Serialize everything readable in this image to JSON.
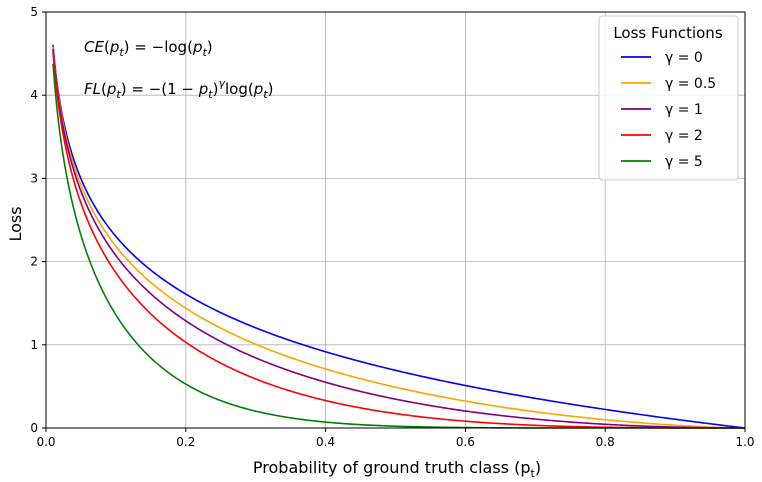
{
  "chart_data": {
    "type": "line",
    "title": "",
    "xlabel": "Probability of ground truth class",
    "xlabel_symbol": "(p",
    "xlabel_sub": "t",
    "xlabel_close": ")",
    "ylabel": "Loss",
    "xlim": [
      0.0,
      1.0
    ],
    "ylim": [
      0,
      5
    ],
    "x_ticks": [
      "0.0",
      "0.2",
      "0.4",
      "0.6",
      "0.8",
      "1.0"
    ],
    "y_ticks": [
      "0",
      "1",
      "2",
      "3",
      "4",
      "5"
    ],
    "grid": true,
    "x_start": 0.01,
    "annotations": {
      "ce": {
        "lhs": "CE",
        "arg": "p",
        "sub": "t",
        "rhs": " = −log(",
        "tail": ")"
      },
      "fl": {
        "lhs": "FL",
        "arg": "p",
        "sub": "t",
        "rhs": " = −(1 − ",
        "gamma": "γ",
        "log": "log(",
        "tail": ")"
      }
    },
    "legend": {
      "title": "Loss Functions",
      "placement": "top-right"
    },
    "series": [
      {
        "name": "γ = 0",
        "gamma": 0,
        "color": "#0000ff"
      },
      {
        "name": "γ = 0.5",
        "gamma": 0.5,
        "color": "#ffa500"
      },
      {
        "name": "γ = 1",
        "gamma": 1,
        "color": "#800080"
      },
      {
        "name": "γ = 2",
        "gamma": 2,
        "color": "#ff0000"
      },
      {
        "name": "γ = 5",
        "gamma": 5,
        "color": "#008000"
      }
    ]
  }
}
